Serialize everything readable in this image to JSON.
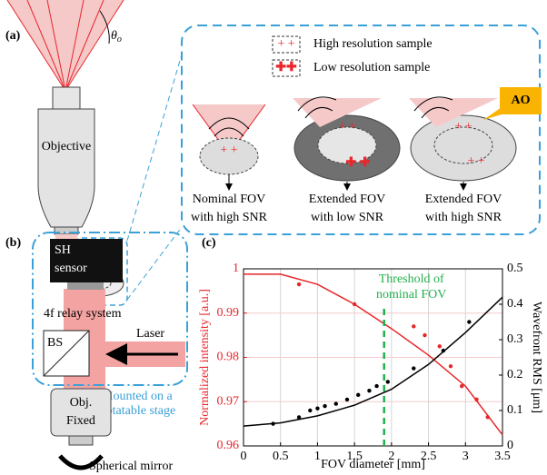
{
  "panels": {
    "a": {
      "label": "(a)",
      "angle": "θ",
      "angle_sub": "o",
      "objective": "Objective",
      "legend": [
        "High resolution sample",
        "Low resolution sample"
      ],
      "captions": [
        [
          "Nominal FOV",
          "with high SNR"
        ],
        [
          "Extended FOV",
          "with low SNR"
        ],
        [
          "Extended FOV",
          "with high SNR"
        ]
      ],
      "ao": "AO"
    },
    "b": {
      "label": "(b)",
      "sensor": [
        "SH",
        "sensor"
      ],
      "relay": "4f relay system",
      "bs": "BS",
      "laser": "Laser",
      "stage": [
        "Mounted on a",
        "rotatable stage"
      ],
      "objective": [
        "Obj.",
        "Fixed"
      ],
      "mirror": "Spherical mirror"
    },
    "c": {
      "label": "(c)"
    }
  },
  "chart_data": {
    "type": "line",
    "xlabel": "FOV diameter [mm]",
    "ylabel": "Normalized intensity [a.u.]",
    "y2label": "Wavefront RMS [μm]",
    "xlim": [
      0,
      3.5
    ],
    "xticks": [
      0,
      0.5,
      1,
      1.5,
      2,
      2.5,
      3,
      3.5
    ],
    "ylim": [
      0.96,
      1
    ],
    "yticks": [
      0.96,
      0.97,
      0.98,
      0.99,
      1
    ],
    "y2lim": [
      0,
      0.5
    ],
    "y2ticks": [
      0,
      0.1,
      0.2,
      0.3,
      0.4,
      0.5
    ],
    "grid": true,
    "ycolor": "#e8262b",
    "y2color": "#000000",
    "series": [
      {
        "style": "line",
        "axis": "y",
        "color": "#e8262b",
        "x": [
          0,
          0.5,
          1,
          1.5,
          2,
          2.5,
          3,
          3.5
        ],
        "values": [
          0.9988,
          0.9988,
          0.9965,
          0.992,
          0.9865,
          0.9805,
          0.9735,
          0.9625
        ]
      },
      {
        "style": "markers",
        "axis": "y",
        "color": "#e8262b",
        "x": [
          0.75,
          1.5,
          2.3,
          2.45,
          2.65,
          2.8,
          2.95,
          3.15,
          3.3
        ],
        "values": [
          0.9965,
          0.992,
          0.987,
          0.985,
          0.9825,
          0.978,
          0.9735,
          0.9705,
          0.9665
        ]
      },
      {
        "style": "line",
        "axis": "y2",
        "color": "#000000",
        "x": [
          0,
          0.5,
          1,
          1.5,
          2,
          2.5,
          3,
          3.5
        ],
        "values": [
          0.056,
          0.065,
          0.085,
          0.115,
          0.16,
          0.23,
          0.32,
          0.42
        ]
      },
      {
        "style": "markers",
        "axis": "y2",
        "color": "#000000",
        "x": [
          0.4,
          0.75,
          0.9,
          1,
          1.1,
          1.25,
          1.4,
          1.55,
          1.7,
          1.8,
          1.95,
          2.3,
          2.7,
          3.05
        ],
        "values": [
          0.0625,
          0.081,
          0.1,
          0.106,
          0.1125,
          0.119,
          0.131,
          0.144,
          0.156,
          0.169,
          0.181,
          0.219,
          0.269,
          0.35
        ]
      }
    ],
    "threshold": {
      "x": 1.9,
      "color": "#22b14c",
      "text": [
        "Threshold of",
        "nominal FOV"
      ]
    }
  }
}
